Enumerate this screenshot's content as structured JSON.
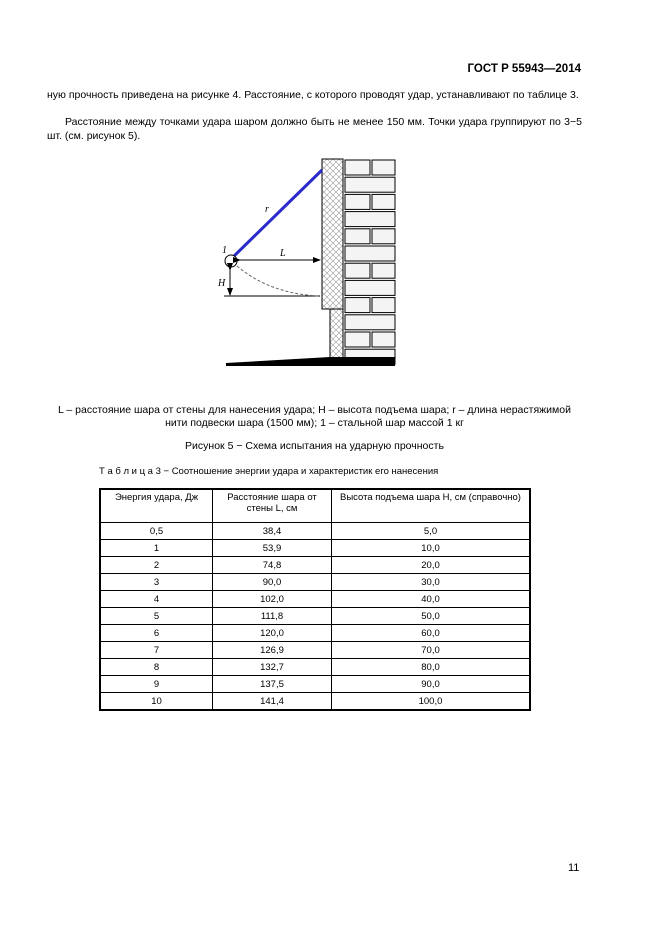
{
  "header": {
    "doc_id": "ГОСТ Р 55943—2014"
  },
  "text": {
    "para1": "ную прочность приведена на рисунке 4. Расстояние, с которого проводят удар, устанавливают по таблице 3.",
    "para2": "Расстояние между точками удара шаром должно быть не менее 150 мм. Точки удара группиру­ют по 3−5 шт. (см. рисунок 5)."
  },
  "figure": {
    "labels": {
      "r": "r",
      "one": "1",
      "L": "L",
      "H": "H"
    },
    "legend": "L – расстояние шара от стены для нанесения удара;  H – высота подъема шара; r – длина нерастяжи­мой нити подвески шара (1500 мм); 1 – стальной шар массой 1 кг",
    "caption": "Рисунок 5 − Схема испытания на ударную прочность",
    "colors": {
      "string": "#2b2bcc"
    }
  },
  "table": {
    "caption": "Т а б л и ц а 3 − Соотношение энергии удара и характеристик его нанесения",
    "headers": [
      "Энергия удара, Дж",
      "Расстояние шара от стены L, см",
      "Высота подъема шара H, см (спра­вочно)"
    ],
    "rows": [
      [
        "0,5",
        "38,4",
        "5,0"
      ],
      [
        "1",
        "53,9",
        "10,0"
      ],
      [
        "2",
        "74,8",
        "20,0"
      ],
      [
        "3",
        "90,0",
        "30,0"
      ],
      [
        "4",
        "102,0",
        "40,0"
      ],
      [
        "5",
        "111,8",
        "50,0"
      ],
      [
        "6",
        "120,0",
        "60,0"
      ],
      [
        "7",
        "126,9",
        "70,0"
      ],
      [
        "8",
        "132,7",
        "80,0"
      ],
      [
        "9",
        "137,5",
        "90,0"
      ],
      [
        "10",
        "141,4",
        "100,0"
      ]
    ]
  },
  "page_number": "11"
}
